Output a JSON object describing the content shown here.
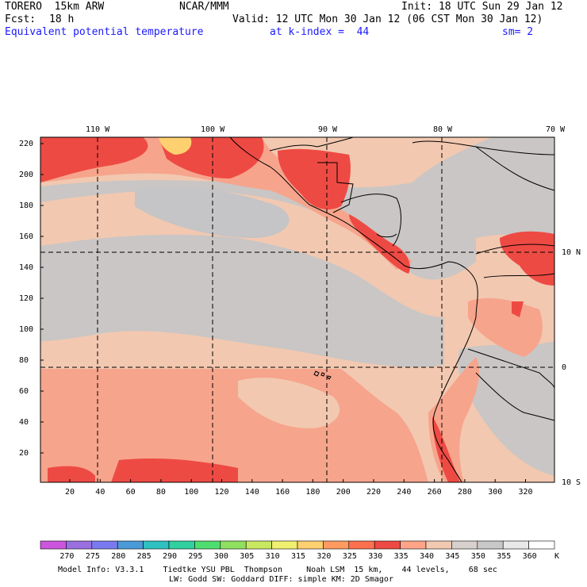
{
  "header": {
    "model": "TORERO  15km ARW",
    "org": "NCAR/MMM",
    "init": "Init: 18 UTC Sun 29 Jan 12",
    "fcst_label": "Fcst:",
    "fcst_value": "18 h",
    "valid": "Valid: 12 UTC Mon 30 Jan 12 (06 CST Mon 30 Jan 12)",
    "field": "Equivalent potential temperature",
    "level": "at k-index =  44",
    "smooth": "sm= 2"
  },
  "map": {
    "lon_labels": [
      "110 W",
      "100 W",
      "90 W",
      "80 W",
      "70 W"
    ],
    "lat_labels": [
      "10 N",
      "0",
      "10 S"
    ],
    "y_ticks": [
      "220",
      "200",
      "180",
      "160",
      "140",
      "120",
      "100",
      "80",
      "60",
      "40",
      "20"
    ],
    "x_ticks": [
      "20",
      "40",
      "60",
      "80",
      "100",
      "120",
      "140",
      "160",
      "180",
      "200",
      "220",
      "240",
      "260",
      "280",
      "300",
      "320"
    ]
  },
  "colorbar": {
    "unit": "K",
    "labels": [
      "270",
      "275",
      "280",
      "285",
      "290",
      "295",
      "300",
      "305",
      "310",
      "315",
      "320",
      "325",
      "330",
      "335",
      "340",
      "345",
      "350",
      "355",
      "360"
    ],
    "colors": [
      "#cc55dd",
      "#9a6fe0",
      "#7a7af0",
      "#4a9ad8",
      "#30c0c0",
      "#30d0a0",
      "#50dd70",
      "#90e060",
      "#c8e860",
      "#f0f070",
      "#ffd070",
      "#ff9a60",
      "#ff7050",
      "#ee4a44",
      "#ffa488",
      "#f2c8b0",
      "#d8d0cc",
      "#c8c8c8",
      "#e8e8e8",
      "#ffffff"
    ]
  },
  "footer": {
    "line1": "Model Info: V3.3.1    Tiedtke YSU PBL  Thompson     Noah LSM  15 km,    44 levels,    68 sec",
    "line2": "LW: Godd SW: Goddard DIFF: simple KM: 2D Smagor"
  }
}
